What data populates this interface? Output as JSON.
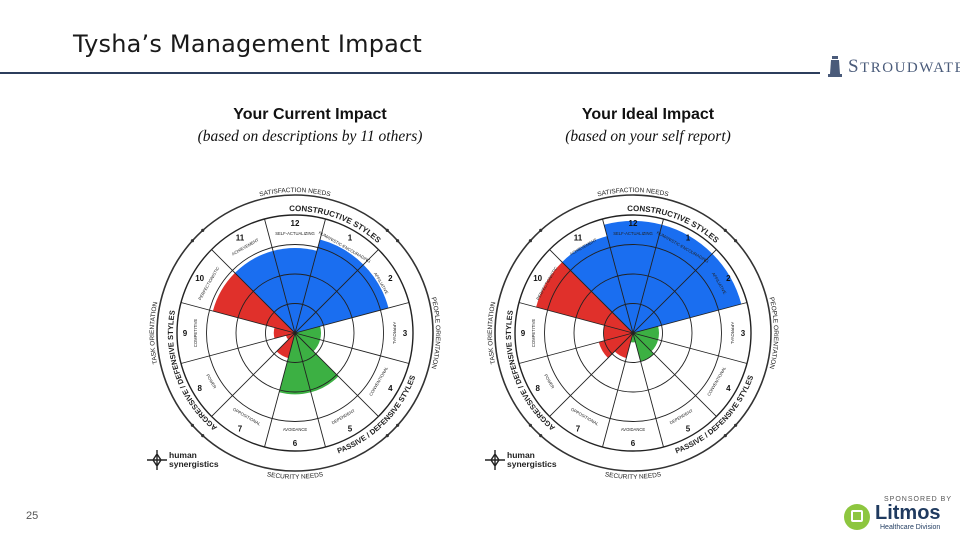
{
  "slide": {
    "title": "Tysha’s Management Impact",
    "page_number": "25"
  },
  "brand": {
    "name": "Stroudwater",
    "initial": "S",
    "rest": "TROUDWATER"
  },
  "sponsor": {
    "label": "SPONSORED BY",
    "name": "Litmos",
    "division": "Healthcare Division"
  },
  "publisher": {
    "line1": "human",
    "line2": "synergistics"
  },
  "circumplex_labels": {
    "top_arc": "SATISFACTION NEEDS",
    "bottom_arc": "SECURITY NEEDS",
    "left_arc": "TASK ORIENTATION",
    "right_arc": "PEOPLE ORIENTATION",
    "constructive": "CONSTRUCTIVE STYLES",
    "passive": "PASSIVE / DEFENSIVE STYLES",
    "aggressive": "AGGRESSIVE / DEFENSIVE STYLES",
    "segments": [
      "SELF-ACTUALIZING",
      "HUMANISTIC-ENCOURAGING",
      "AFFILIATIVE",
      "APPROVAL",
      "CONVENTIONAL",
      "DEPENDENT",
      "AVOIDANCE",
      "OPPOSITIONAL",
      "POWER",
      "COMPETITIVE",
      "PERFECTIONISTIC",
      "ACHIEVEMENT"
    ],
    "numbers": [
      "12",
      "1",
      "2",
      "3",
      "4",
      "5",
      "6",
      "7",
      "8",
      "9",
      "10",
      "11"
    ]
  },
  "colors": {
    "constructive": "#1a6ef0",
    "passive": "#3cb043",
    "aggressive": "#e0302b"
  },
  "panels": [
    {
      "title": "Your Current Impact",
      "subtitle": "(based on descriptions by 11 others)",
      "extents": {
        "12": 0.72,
        "1": 0.82,
        "2": 0.82,
        "3": 0.22,
        "4": 0.22,
        "5": 0.52,
        "6": 0.52,
        "7": 0.22,
        "8": 0.08,
        "9": 0.18,
        "10": 0.72,
        "11": 0.72
      }
    },
    {
      "title": "Your Ideal Impact",
      "subtitle": "(based on your self report)",
      "extents": {
        "12": 0.95,
        "1": 0.95,
        "2": 0.95,
        "3": 0.22,
        "4": 0.22,
        "5": 0.25,
        "6": 0.08,
        "7": 0.22,
        "8": 0.3,
        "9": 0.25,
        "10": 0.85,
        "11": 0.85
      }
    }
  ]
}
